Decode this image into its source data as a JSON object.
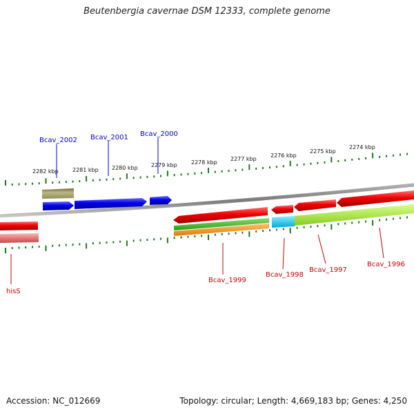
{
  "title": "Beutenbergia cavernae DSM 12333, complete genome",
  "footer": {
    "accession": "Accession: NC_012669",
    "summary": "Topology: circular; Length: 4,669,183 bp; Genes: 4,250"
  },
  "scale_labels": [
    "2282 kbp",
    "2281 kbp",
    "2280 kbp",
    "2279 kbp",
    "2278 kbp",
    "2277 kbp",
    "2276 kbp",
    "2275 kbp",
    "2274 kbp"
  ],
  "genes_top": [
    "Bcav_2002",
    "Bcav_2001",
    "Bcav_2000"
  ],
  "genes_bottom": [
    "hisS",
    "Bcav_1999",
    "Bcav_1998",
    "Bcav_1997",
    "Bcav_1996"
  ],
  "colors": {
    "forward_gene": "#0000ee",
    "forward_label": "#0000cc",
    "reverse_gene": "#ee0000",
    "reverse_label": "#cc0000",
    "backbone": "#888888",
    "tick": "#1a7a1a",
    "olive_feature": "#a09a60",
    "green_feature": "#44bb22",
    "orange_feature": "#ff9922",
    "cyan_feature": "#22ccee",
    "lime_feature": "#aaee33",
    "pink_feature": "#e87878"
  }
}
